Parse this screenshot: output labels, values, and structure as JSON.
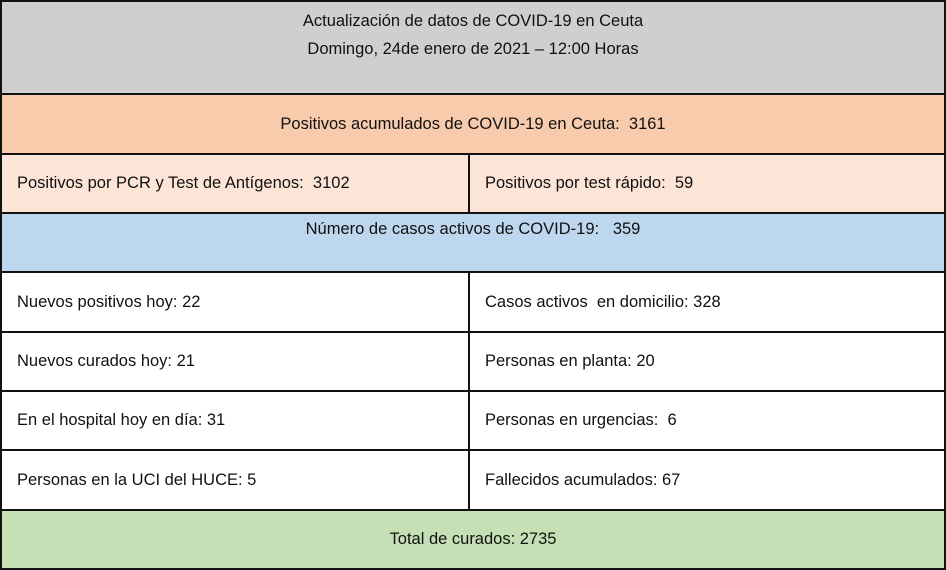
{
  "header": {
    "title": "Actualización de datos de COVID-19 en Ceuta",
    "date": "Domingo, 24de enero de 2021 – 12:00 Horas"
  },
  "accumulated": "Positivos acumulados de COVID-19 en Ceuta:  3161",
  "pcr": "Positivos por PCR y Test de Antígenos:  3102",
  "rapid": "Positivos por test rápido:  59",
  "active": "Número de casos activos de COVID-19:   359",
  "rows": [
    {
      "left": "Nuevos positivos hoy: 22",
      "right": "Casos activos  en domicilio: 328"
    },
    {
      "left": "Nuevos curados hoy: 21",
      "right": "Personas en planta: 20"
    },
    {
      "left": "En el hospital hoy en día: 31",
      "right": "Personas en urgencias:  6"
    },
    {
      "left": "Personas en la UCI del HUCE: 5",
      "right": "Fallecidos acumulados: 67"
    }
  ],
  "recovered": "Total de curados: 2735",
  "colors": {
    "header": "#d0cece",
    "accumulated": "#f8cbad",
    "pcr_row": "#fce4d6",
    "active": "#bdd7ee",
    "recovered": "#c5e0b4"
  }
}
